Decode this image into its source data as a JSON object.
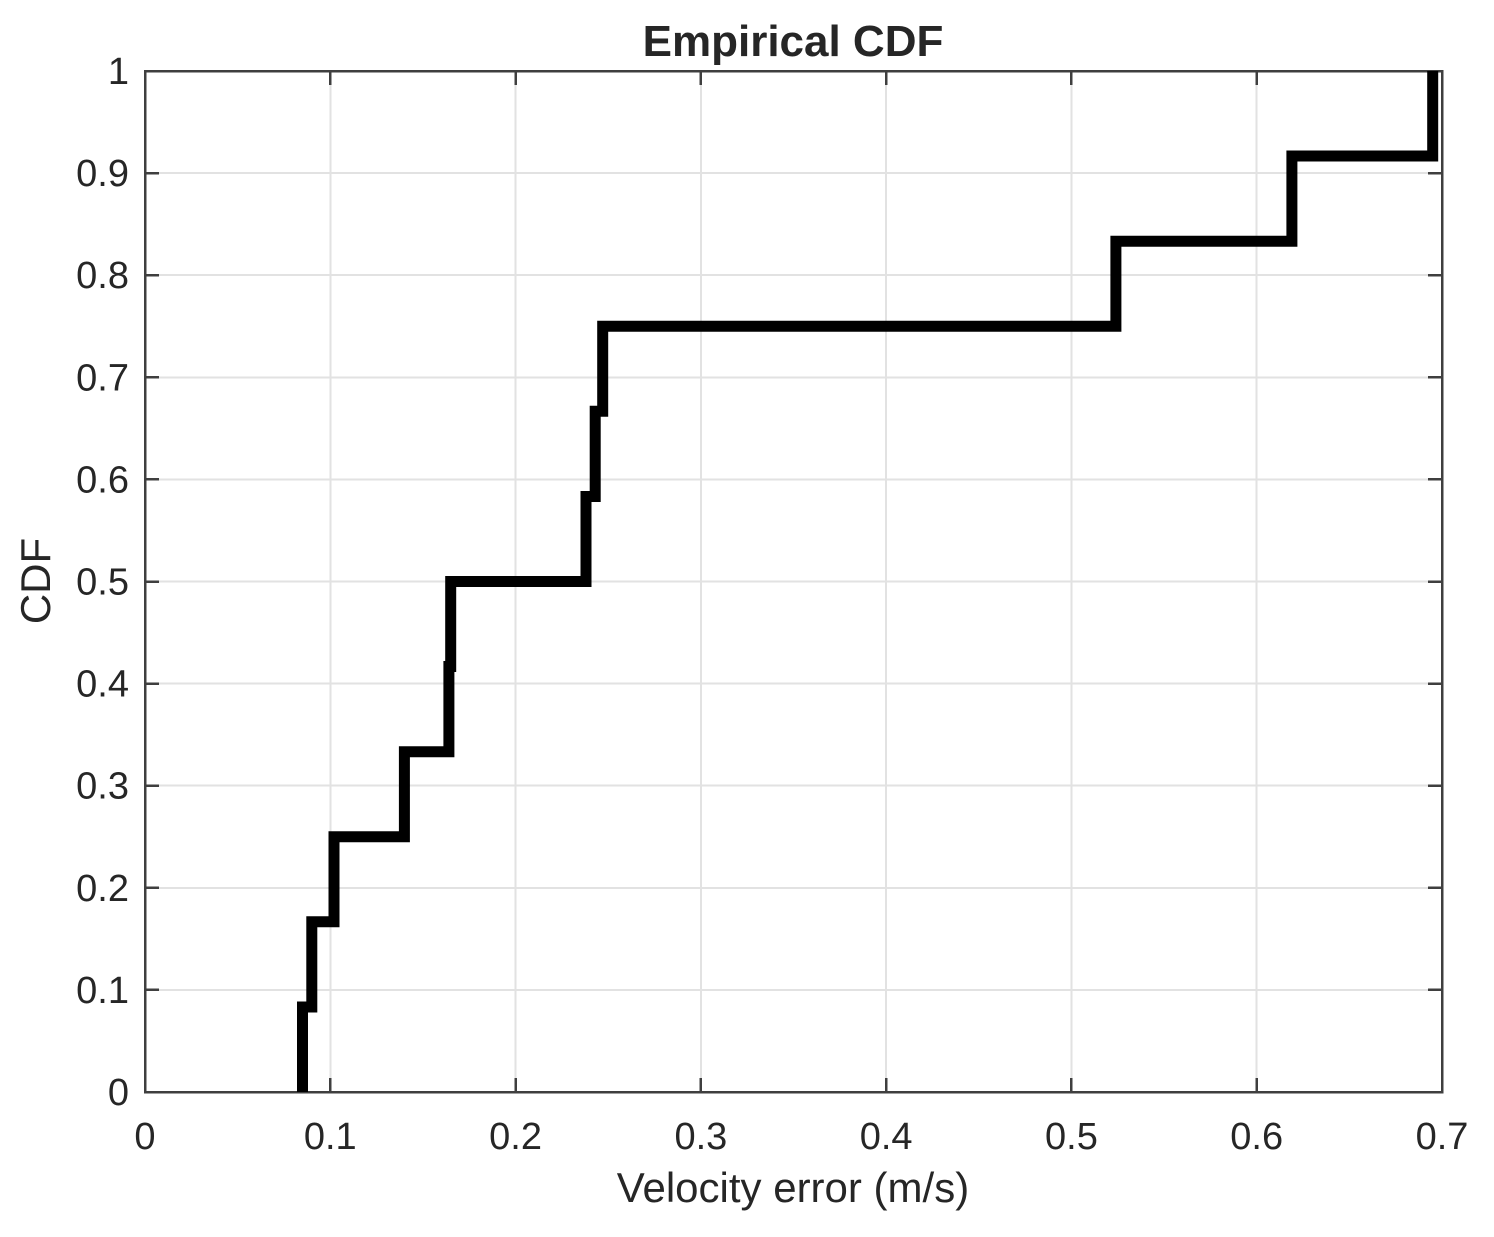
{
  "figure": {
    "background": "#ffffff"
  },
  "chart_data": {
    "type": "line",
    "subtype": "empirical-cdf-step",
    "title": "Empirical CDF",
    "xlabel": "Velocity error (m/s)",
    "ylabel": "CDF",
    "xlim": [
      0,
      0.7
    ],
    "ylim": [
      0,
      1
    ],
    "grid": true,
    "legend_position": "none",
    "x_ticks": [
      0,
      0.1,
      0.2,
      0.3,
      0.4,
      0.5,
      0.6,
      0.7
    ],
    "x_tick_labels": [
      "0",
      "0.1",
      "0.2",
      "0.3",
      "0.4",
      "0.5",
      "0.6",
      "0.7"
    ],
    "y_ticks": [
      0,
      0.1,
      0.2,
      0.3,
      0.4,
      0.5,
      0.6,
      0.7,
      0.8,
      0.9,
      1
    ],
    "y_tick_labels": [
      "0",
      "0.1",
      "0.2",
      "0.3",
      "0.4",
      "0.5",
      "0.6",
      "0.7",
      "0.8",
      "0.9",
      "1"
    ],
    "series": [
      {
        "name": "empirical-cdf",
        "x": [
          0.085,
          0.09,
          0.102,
          0.14,
          0.164,
          0.165,
          0.238,
          0.243,
          0.247,
          0.524,
          0.619,
          0.695
        ],
        "y": [
          0.0833,
          0.1667,
          0.25,
          0.3333,
          0.4167,
          0.5,
          0.5833,
          0.6667,
          0.75,
          0.8333,
          0.9167,
          1.0
        ]
      }
    ],
    "colors": {
      "line": "#000000",
      "grid": "#e2e2e2",
      "axis": "#3f3f3f",
      "text": "#262626"
    }
  }
}
